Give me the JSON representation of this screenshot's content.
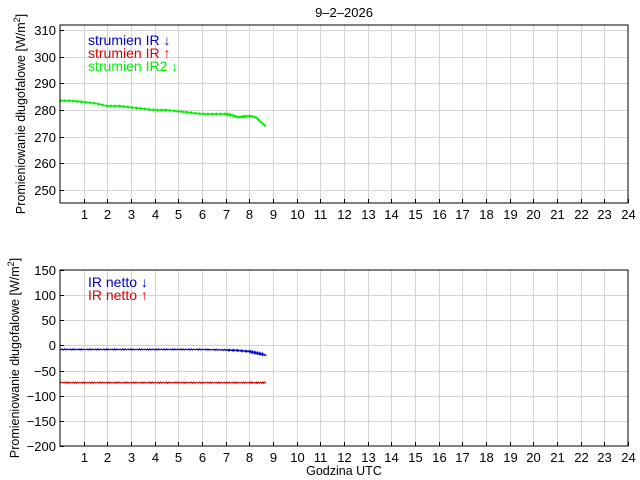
{
  "chart_data": [
    {
      "type": "line",
      "title": "9–2–2026",
      "xlabel": "",
      "ylabel": "Promieniowanie długofalowe [W/m",
      "ylabel_sup": "2",
      "ylabel_end": "]",
      "xlim": [
        0,
        24
      ],
      "ylim": [
        245,
        312
      ],
      "xticks": [
        "1",
        "2",
        "3",
        "4",
        "5",
        "6",
        "7",
        "8",
        "9",
        "10",
        "11",
        "12",
        "13",
        "14",
        "15",
        "16",
        "17",
        "18",
        "19",
        "20",
        "21",
        "22",
        "23",
        "24"
      ],
      "yticks": [
        "250",
        "260",
        "270",
        "280",
        "290",
        "300",
        "310"
      ],
      "grid": true,
      "legend_position": "top-left",
      "series": [
        {
          "name": "strumien IR ↓",
          "color": "#0000cc",
          "x": [],
          "y": []
        },
        {
          "name": "strumien IR ↑",
          "color": "#dd0000",
          "x": [],
          "y": []
        },
        {
          "name": "strumien IR2 ↓",
          "color": "#00ee00",
          "x": [
            0,
            0.5,
            1.0,
            1.5,
            2.0,
            2.5,
            3.0,
            3.5,
            4.0,
            4.5,
            5.0,
            5.5,
            6.0,
            6.5,
            7.0,
            7.3,
            7.5,
            7.7,
            7.9,
            8.1,
            8.3,
            8.5,
            8.7
          ],
          "y": [
            283.5,
            283.5,
            283.0,
            282.5,
            281.5,
            281.5,
            281.0,
            280.5,
            280.0,
            280.0,
            279.5,
            279.0,
            278.5,
            278.5,
            278.5,
            278.0,
            277.5,
            277.5,
            277.5,
            277.5,
            277.0,
            275.5,
            274.0
          ]
        }
      ]
    },
    {
      "type": "line",
      "title": "",
      "xlabel": "Godzina UTC",
      "ylabel": "Promieniowanie długofalowe [W/m",
      "ylabel_sup": "2",
      "ylabel_end": "]",
      "xlim": [
        0,
        24
      ],
      "ylim": [
        -200,
        150
      ],
      "xticks": [
        "1",
        "2",
        "3",
        "4",
        "5",
        "6",
        "7",
        "8",
        "9",
        "10",
        "11",
        "12",
        "13",
        "14",
        "15",
        "16",
        "17",
        "18",
        "19",
        "20",
        "21",
        "22",
        "23",
        "24"
      ],
      "yticks": [
        "−200",
        "−150",
        "−100",
        "−50",
        "0",
        "50",
        "100",
        "150"
      ],
      "grid": true,
      "legend_position": "top-left",
      "series": [
        {
          "name": "IR netto ↓",
          "color": "#0000cc",
          "x": [
            0,
            1,
            2,
            3,
            4,
            5,
            6,
            7,
            7.5,
            8.0,
            8.3,
            8.6,
            8.7
          ],
          "y": [
            -8,
            -8,
            -8,
            -8,
            -8,
            -8,
            -8,
            -9,
            -10,
            -12,
            -15,
            -18,
            -20
          ]
        },
        {
          "name": "IR netto ↑",
          "color": "#dd0000",
          "x": [
            0,
            1,
            2,
            3,
            4,
            5,
            6,
            7,
            8,
            8.7
          ],
          "y": [
            -74,
            -74,
            -74,
            -74,
            -74,
            -74,
            -74,
            -74,
            -74,
            -74
          ]
        }
      ]
    }
  ]
}
